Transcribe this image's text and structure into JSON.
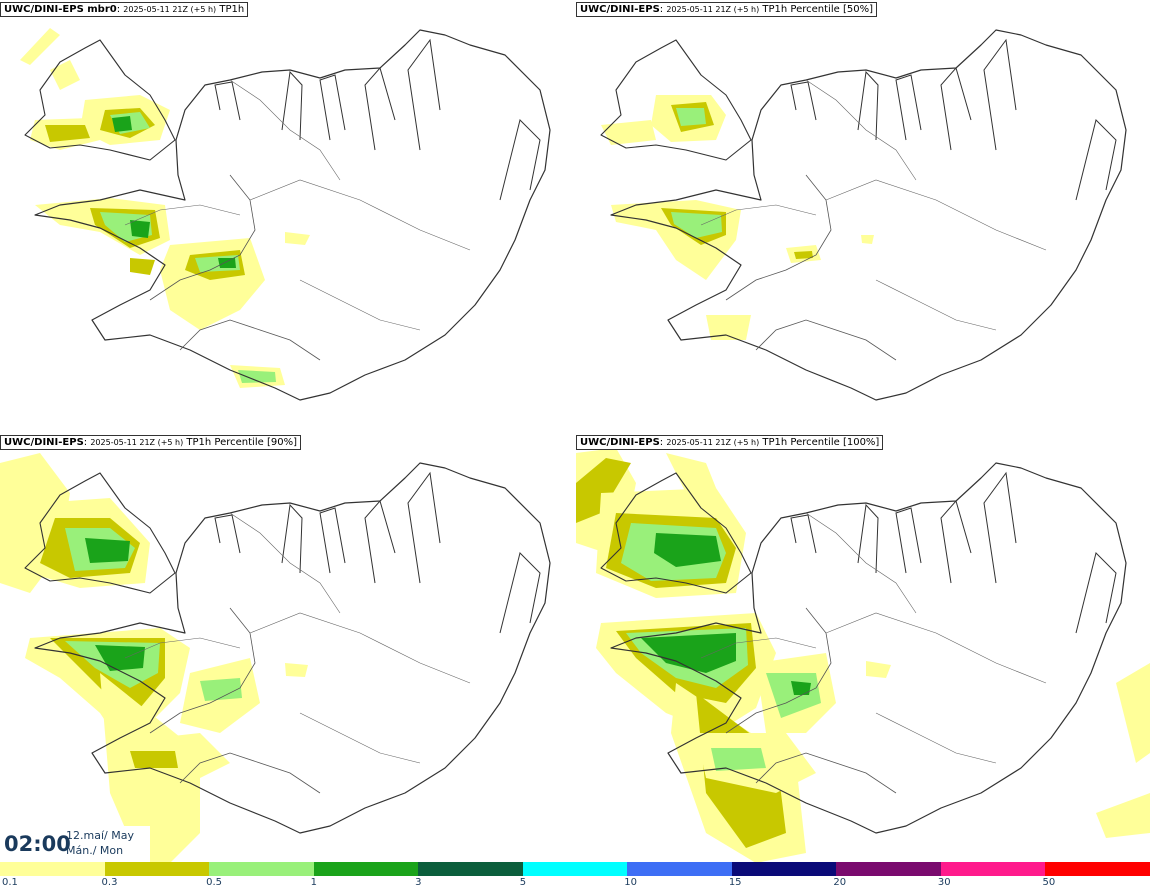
{
  "panels": [
    {
      "model": "UWC/DINI-EPS mbr0",
      "run": "2025-05-11 21Z (+5 h)",
      "variable": "TP1h"
    },
    {
      "model": "UWC/DINI-EPS",
      "run": "2025-05-11 21Z (+5 h)",
      "variable": "TP1h Percentile [50%]"
    },
    {
      "model": "UWC/DINI-EPS",
      "run": "2025-05-11 21Z (+5 h)",
      "variable": "TP1h Percentile [90%]"
    },
    {
      "model": "UWC/DINI-EPS",
      "run": "2025-05-11 21Z (+5 h)",
      "variable": "TP1h Percentile [100%]"
    }
  ],
  "valid_time": {
    "time": "02:00",
    "date_line1": "12.maí/ May",
    "date_line2": "Mán./ Mon"
  },
  "legend": {
    "colors": [
      "#ffff99",
      "#c8c800",
      "#99f07a",
      "#1aa31a",
      "#0b5e3c",
      "#00ffff",
      "#3d6ef5",
      "#0a0a78",
      "#7a0a6e",
      "#ff1a8c",
      "#ff0000"
    ],
    "tick_labels": [
      "0.1",
      "0.3",
      "0.5",
      "1",
      "3",
      "5",
      "10",
      "15",
      "20",
      "30",
      "50"
    ]
  },
  "colors": {
    "land_outline": "#333333",
    "background": "#ffffff",
    "text": "#1a3a5c"
  }
}
